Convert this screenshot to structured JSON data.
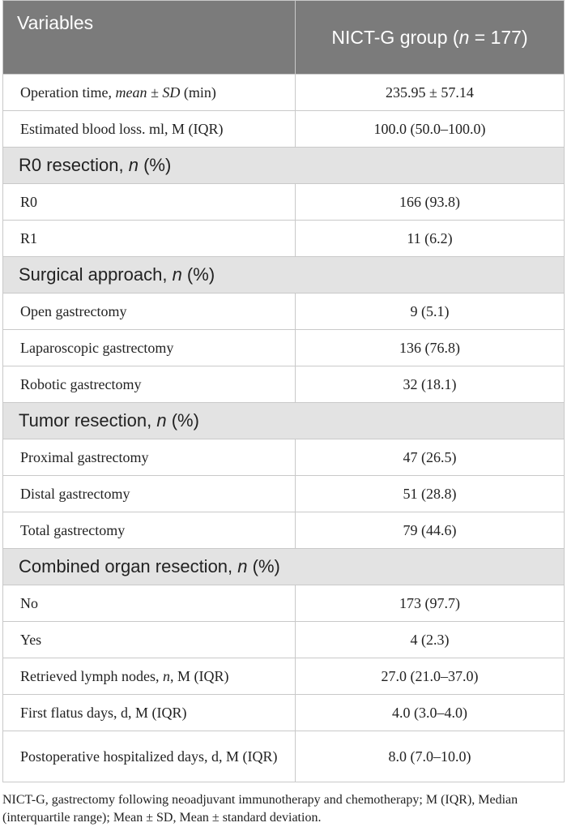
{
  "header": {
    "col1": "Variables",
    "col2_prefix": "NICT-G group (",
    "col2_n": "n",
    "col2_suffix": " = 177)"
  },
  "rows": {
    "op_time": {
      "label_a": "Operation time, ",
      "label_i": "mean ± SD",
      "label_b": " (min)",
      "value": "235.95 ± 57.14"
    },
    "blood_loss": {
      "label": "Estimated blood loss. ml, M (IQR)",
      "value": "100.0 (50.0–100.0)"
    },
    "r0_section": {
      "label_a": "R0 resection, ",
      "label_i": "n",
      "label_b": " (%)"
    },
    "r0": {
      "label": "R0",
      "value": "166 (93.8)"
    },
    "r1": {
      "label": "R1",
      "value": "11 (6.2)"
    },
    "approach_section": {
      "label_a": "Surgical approach, ",
      "label_i": "n",
      "label_b": " (%)"
    },
    "open": {
      "label": "Open gastrectomy",
      "value": "9 (5.1)"
    },
    "lap": {
      "label": "Laparoscopic gastrectomy",
      "value": "136 (76.8)"
    },
    "robotic": {
      "label": "Robotic gastrectomy",
      "value": "32 (18.1)"
    },
    "tumor_section": {
      "label_a": "Tumor resection, ",
      "label_i": "n",
      "label_b": " (%)"
    },
    "proximal": {
      "label": "Proximal gastrectomy",
      "value": "47 (26.5)"
    },
    "distal": {
      "label": "Distal gastrectomy",
      "value": "51 (28.8)"
    },
    "total": {
      "label": "Total gastrectomy",
      "value": "79 (44.6)"
    },
    "combined_section": {
      "label_a": "Combined organ resection, ",
      "label_i": "n",
      "label_b": " (%)"
    },
    "no": {
      "label": "No",
      "value": "173 (97.7)"
    },
    "yes": {
      "label": "Yes",
      "value": "4 (2.3)"
    },
    "lymph": {
      "label_a": "Retrieved lymph nodes, ",
      "label_i": "n",
      "label_b": ", M (IQR)",
      "value": "27.0 (21.0–37.0)"
    },
    "flatus": {
      "label": "First flatus days, d, M (IQR)",
      "value": "4.0 (3.0–4.0)"
    },
    "hospital": {
      "label": "Postoperative hospitalized days, d, M (IQR)",
      "value": "8.0 (7.0–10.0)"
    }
  },
  "footnote": "NICT-G, gastrectomy following neoadjuvant immunotherapy and chemotherapy; M (IQR), Median (interquartile range); Mean ± SD, Mean ± standard deviation."
}
